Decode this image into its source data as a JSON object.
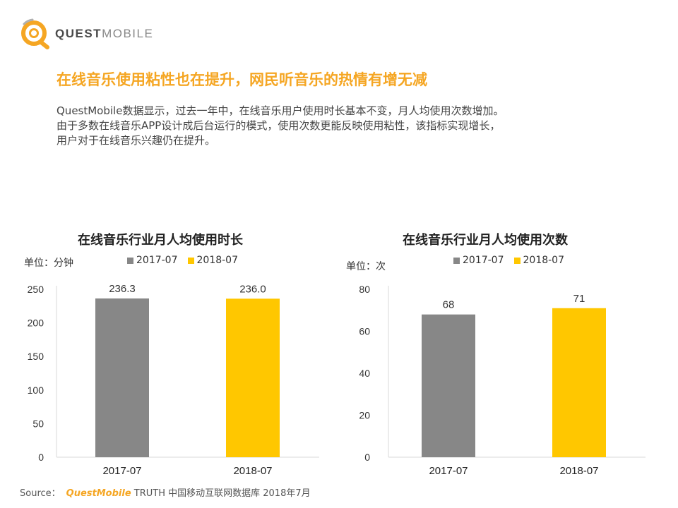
{
  "logo": {
    "text_bold": "QUEST",
    "text_light": "MOBILE"
  },
  "headline": "在线音乐使用粘性也在提升，网民听音乐的热情有增无减",
  "summary": [
    "QuestMobile数据显示，过去一年中，在线音乐用户使用时长基本不变，月人均使用次数增加。",
    "由于多数在线音乐APP设计成后台运行的模式，使用次数更能反映使用粘性，该指标实现增长，",
    "用户对于在线音乐兴趣仍在提升。"
  ],
  "colors": {
    "accent": "#f5a623",
    "series_2017": "#878787",
    "series_2018": "#ffc700",
    "axis": "#d9d9d9"
  },
  "chart_data": [
    {
      "type": "bar",
      "title": "在线音乐行业月人均使用时长",
      "unit_label": "单位：分钟",
      "categories": [
        "2017-07",
        "2018-07"
      ],
      "values": [
        236.3,
        236.0
      ],
      "value_labels": [
        "236.3",
        "236.0"
      ],
      "legend": [
        "2017-07",
        "2018-07"
      ],
      "ylim": [
        0,
        250
      ],
      "yticks": [
        0,
        50,
        100,
        150,
        200,
        250
      ],
      "xlabel": "",
      "ylabel": ""
    },
    {
      "type": "bar",
      "title": "在线音乐行业月人均使用次数",
      "unit_label": "单位：次",
      "categories": [
        "2017-07",
        "2018-07"
      ],
      "values": [
        68,
        71
      ],
      "value_labels": [
        "68",
        "71"
      ],
      "legend": [
        "2017-07",
        "2018-07"
      ],
      "ylim": [
        0,
        80
      ],
      "yticks": [
        0,
        20,
        40,
        60,
        80
      ],
      "xlabel": "",
      "ylabel": ""
    }
  ],
  "source": {
    "label": "Source：",
    "brand": "QuestMobile",
    "text": "TRUTH 中国移动互联网数据库  2018年7月"
  }
}
